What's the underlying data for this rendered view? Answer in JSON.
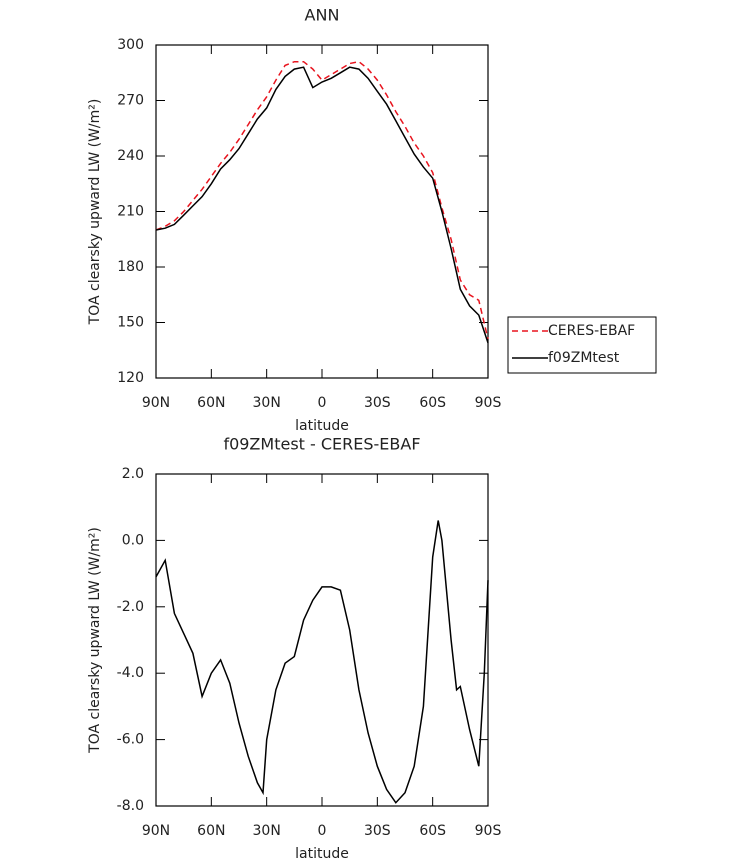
{
  "chart_data": [
    {
      "type": "line",
      "title": "ANN",
      "xlabel": "latitude",
      "ylabel": "TOA clearsky upward LW (W/m²)",
      "x": [
        90,
        85,
        80,
        75,
        70,
        65,
        60,
        55,
        50,
        45,
        40,
        35,
        30,
        25,
        20,
        15,
        10,
        5,
        0,
        -5,
        -10,
        -15,
        -20,
        -25,
        -30,
        -35,
        -40,
        -45,
        -50,
        -55,
        -60,
        -65,
        -70,
        -75,
        -80,
        -85,
        -90
      ],
      "series": [
        {
          "name": "CERES-EBAF",
          "color": "#e8141e",
          "linestyle": "dashed",
          "values": [
            200,
            202,
            205,
            210,
            216,
            222,
            229,
            236,
            242,
            249,
            257,
            265,
            272,
            281,
            289,
            291,
            291,
            287,
            281,
            284,
            287,
            290,
            291,
            287,
            281,
            273,
            264,
            256,
            247,
            240,
            231,
            212,
            195,
            173,
            165,
            162,
            141
          ]
        },
        {
          "name": "f09ZMtest",
          "color": "#000000",
          "linestyle": "solid",
          "values": [
            200,
            201,
            203,
            208,
            213,
            218,
            225,
            233,
            238,
            244,
            252,
            260,
            266,
            276,
            283,
            287,
            288,
            277,
            280,
            282,
            285,
            288,
            287,
            282,
            275,
            268,
            259,
            250,
            241,
            234,
            228,
            210,
            190,
            168,
            159,
            154,
            139
          ]
        }
      ],
      "xlim": [
        90,
        -90
      ],
      "xticks": [
        {
          "value": 90,
          "label": "90N"
        },
        {
          "value": 60,
          "label": "60N"
        },
        {
          "value": 30,
          "label": "30N"
        },
        0,
        {
          "value": -30,
          "label": "30S"
        },
        {
          "value": -60,
          "label": "60S"
        },
        {
          "value": -90,
          "label": "90S"
        }
      ],
      "ylim": [
        120,
        300
      ],
      "yticks": [
        120,
        150,
        180,
        210,
        240,
        270,
        300
      ],
      "legend": "right"
    },
    {
      "type": "line",
      "title": "f09ZMtest - CERES-EBAF",
      "xlabel": "latitude",
      "ylabel": "TOA clearsky upward LW (W/m²)",
      "x": [
        90,
        85,
        80,
        75,
        70,
        65,
        60,
        55,
        50,
        45,
        40,
        35,
        32,
        30,
        25,
        20,
        15,
        10,
        5,
        0,
        -5,
        -10,
        -15,
        -20,
        -25,
        -30,
        -35,
        -40,
        -45,
        -50,
        -55,
        -60,
        -63,
        -65,
        -70,
        -73,
        -75,
        -80,
        -85,
        -88,
        -90
      ],
      "values": [
        -1.1,
        -0.6,
        -2.2,
        -2.8,
        -3.4,
        -4.7,
        -4.0,
        -3.6,
        -4.3,
        -5.5,
        -6.5,
        -7.3,
        -7.6,
        -6.0,
        -4.5,
        -3.7,
        -3.5,
        -2.4,
        -1.8,
        -1.4,
        -1.4,
        -1.5,
        -2.7,
        -4.5,
        -5.8,
        -6.8,
        -7.5,
        -7.9,
        -7.6,
        -6.8,
        -5.0,
        -0.5,
        0.6,
        0.0,
        -3.0,
        -4.5,
        -4.4,
        -5.7,
        -6.8,
        -4.0,
        -1.2
      ],
      "color": "#000000",
      "xlim": [
        90,
        -90
      ],
      "xticks": [
        {
          "value": 90,
          "label": "90N"
        },
        {
          "value": 60,
          "label": "60N"
        },
        {
          "value": 30,
          "label": "30N"
        },
        0,
        {
          "value": -30,
          "label": "30S"
        },
        {
          "value": -60,
          "label": "60S"
        },
        {
          "value": -90,
          "label": "90S"
        }
      ],
      "ylim": [
        -8,
        2
      ],
      "yticks": [
        {
          "value": -8,
          "label": "-8.0"
        },
        {
          "value": -6,
          "label": "-6.0"
        },
        {
          "value": -4,
          "label": "-4.0"
        },
        {
          "value": -2,
          "label": "-2.0"
        },
        {
          "value": 0,
          "label": "0.0"
        },
        {
          "value": 2,
          "label": "2.0"
        }
      ]
    }
  ]
}
